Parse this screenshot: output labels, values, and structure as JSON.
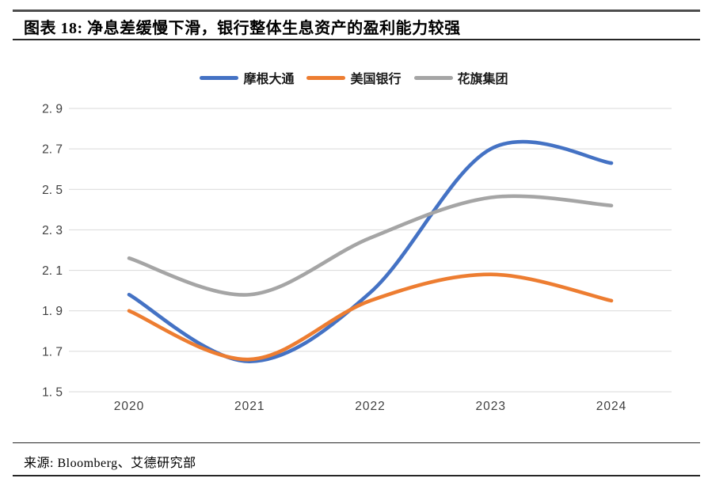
{
  "page": {
    "title": "图表 18: 净息差缓慢下滑，银行整体生息资产的盈利能力较强",
    "source": "来源: Bloomberg、艾德研究部"
  },
  "chart_data": {
    "type": "line",
    "title": "图表 18: 净息差缓慢下滑，银行整体生息资产的盈利能力较强",
    "line_style": "smooth",
    "x": [
      2020,
      2021,
      2022,
      2023,
      2024
    ],
    "x_labels": [
      "2020",
      "2021",
      "2022",
      "2023",
      "2024"
    ],
    "series": [
      {
        "name": "摩根大通",
        "color": "#4472C4",
        "values": [
          1.98,
          1.65,
          1.99,
          2.7,
          2.63
        ]
      },
      {
        "name": "美国银行",
        "color": "#ED7D31",
        "values": [
          1.9,
          1.66,
          1.95,
          2.08,
          1.95
        ]
      },
      {
        "name": "花旗集团",
        "color": "#A5A5A5",
        "values": [
          2.16,
          1.98,
          2.26,
          2.46,
          2.42
        ]
      }
    ],
    "ylim": [
      1.5,
      2.9
    ],
    "ytick_values": [
      2.9,
      2.7,
      2.5,
      2.3,
      2.1,
      1.9,
      1.7,
      1.5
    ],
    "ytick_labels": [
      "2. 9",
      "2. 7",
      "2. 5",
      "2. 3",
      "2. 1",
      "1. 9",
      "1. 7",
      "1. 5"
    ],
    "grid": "horizontal",
    "legend_position": "top",
    "colors": {
      "gridline": "#D9D9D9",
      "tick_text": "#3f3f3f"
    }
  }
}
